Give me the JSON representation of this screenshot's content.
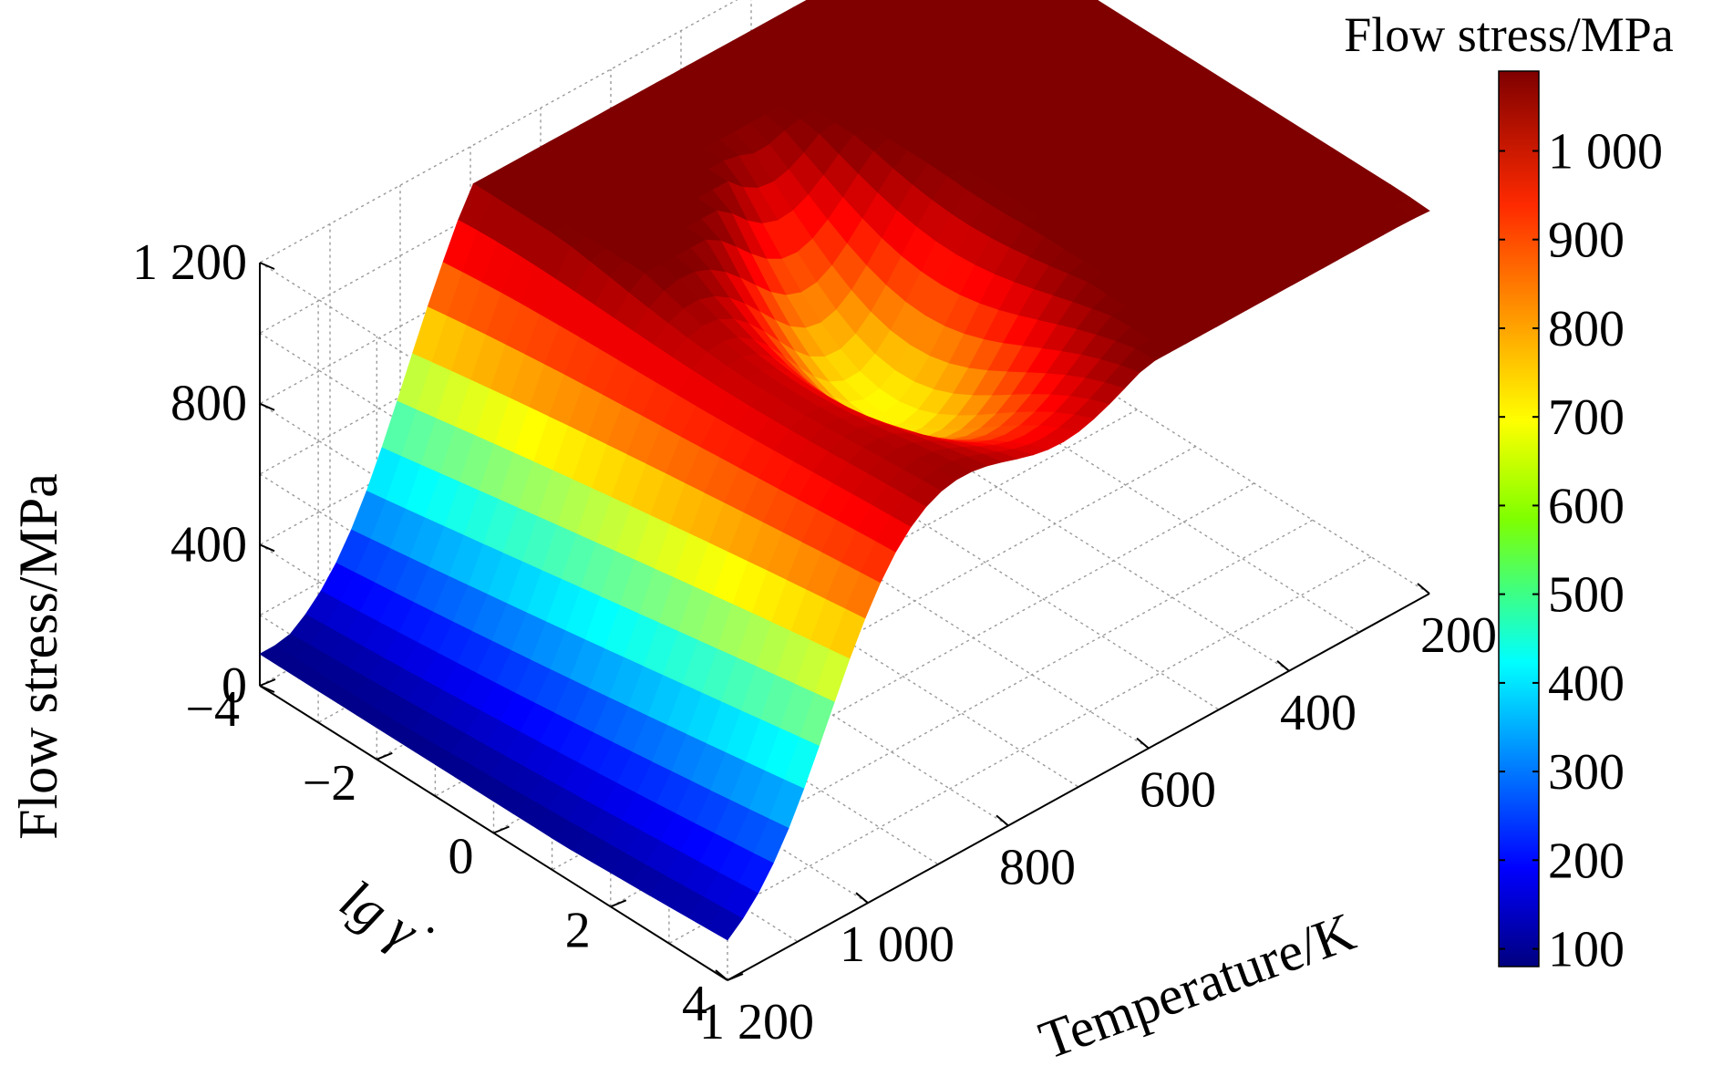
{
  "chart_data": {
    "type": "surface",
    "zlabel": "Flow stress/MPa",
    "ylabel": "lg γ̇",
    "xlabel": "Temperature/K",
    "colorbar_title": "Flow stress/MPa",
    "z_range": [
      0,
      1200
    ],
    "z_ticks": [
      "0",
      "400",
      "800",
      "1 200"
    ],
    "z_tick_values": [
      0,
      400,
      800,
      1200
    ],
    "y_range": [
      -4,
      4
    ],
    "y_ticks": [
      "−4",
      "−2",
      "0",
      "2",
      "4"
    ],
    "y_tick_values": [
      -4,
      -2,
      0,
      2,
      4
    ],
    "x_range": [
      200,
      1200
    ],
    "x_ticks": [
      "200",
      "400",
      "600",
      "800",
      "1 000",
      "1 200"
    ],
    "x_tick_values": [
      200,
      400,
      600,
      800,
      1000,
      1200
    ],
    "colorbar_range": [
      80,
      1090
    ],
    "colorbar_ticks": [
      "100",
      "200",
      "300",
      "400",
      "500",
      "600",
      "700",
      "800",
      "900",
      "1 000"
    ],
    "colorbar_tick_values": [
      100,
      200,
      300,
      400,
      500,
      600,
      700,
      800,
      900,
      1000
    ],
    "colormap": "jet",
    "grid": true,
    "approx_surface_samples": [
      {
        "temperature": 200,
        "lg_strain_rate": -4,
        "stress": 1080
      },
      {
        "temperature": 200,
        "lg_strain_rate": 4,
        "stress": 1000
      },
      {
        "temperature": 700,
        "lg_strain_rate": -4,
        "stress": 720
      },
      {
        "temperature": 800,
        "lg_strain_rate": -4,
        "stress": 710
      },
      {
        "temperature": 800,
        "lg_strain_rate": 0,
        "stress": 340
      },
      {
        "temperature": 1000,
        "lg_strain_rate": -4,
        "stress": 380
      },
      {
        "temperature": 1200,
        "lg_strain_rate": -4,
        "stress": 100
      },
      {
        "temperature": 1200,
        "lg_strain_rate": 4,
        "stress": 100
      }
    ]
  }
}
